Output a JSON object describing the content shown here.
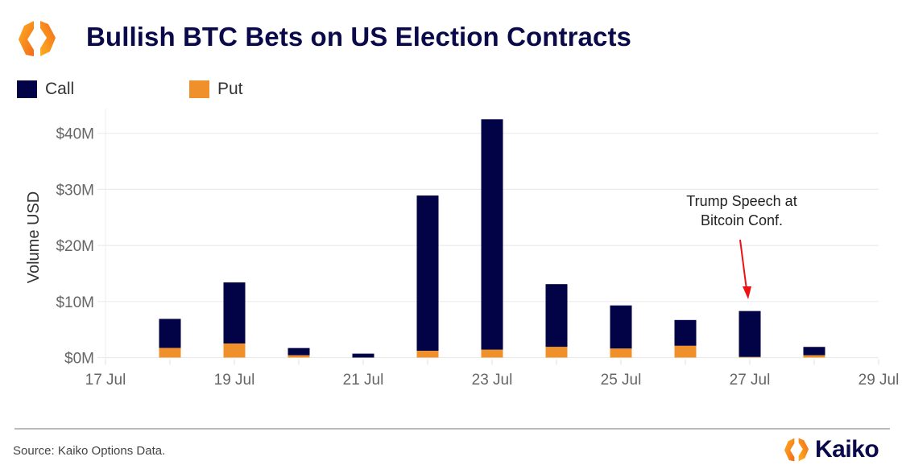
{
  "header": {
    "title": "Bullish BTC Bets on US Election Contracts",
    "logo_icon": "kaiko-hexagon-logo-icon"
  },
  "legend": [
    {
      "label": "Call",
      "color": "#020246"
    },
    {
      "label": "Put",
      "color": "#f0902a"
    }
  ],
  "footer": {
    "source": "Source: Kaiko Options Data.",
    "brand": "Kaiko"
  },
  "colors": {
    "call": "#020246",
    "put": "#f0902a",
    "title": "#0a0a4a",
    "annotation_arrow": "#ee1111",
    "grid": "#ececec"
  },
  "chart_data": {
    "type": "bar",
    "stacked": true,
    "title": "Bullish BTC Bets on US Election Contracts",
    "xlabel": "",
    "ylabel": "Volume USD",
    "ylim": [
      0,
      42.5
    ],
    "y_unit": "USD millions",
    "y_ticks": [
      0,
      10,
      20,
      30,
      40
    ],
    "y_tick_labels": [
      "$0M",
      "$10M",
      "$20M",
      "$30M",
      "$40M"
    ],
    "x_tick_labels": [
      "17 Jul",
      "19 Jul",
      "21 Jul",
      "23 Jul",
      "25 Jul",
      "27 Jul",
      "29 Jul"
    ],
    "x_tick_days": [
      17,
      19,
      21,
      23,
      25,
      27,
      29
    ],
    "x_range_days": [
      17,
      29
    ],
    "grid": true,
    "legend_position": "top-left",
    "categories": [
      "18 Jul",
      "19 Jul",
      "20 Jul",
      "21 Jul",
      "22 Jul",
      "23 Jul",
      "24 Jul",
      "25 Jul",
      "26 Jul",
      "27 Jul",
      "28 Jul"
    ],
    "category_days": [
      18,
      19,
      20,
      21,
      22,
      23,
      24,
      25,
      26,
      27,
      28
    ],
    "series": [
      {
        "name": "Put",
        "values": [
          1.7,
          2.5,
          0.4,
          0.0,
          1.2,
          1.4,
          1.9,
          1.6,
          2.1,
          0.1,
          0.4
        ]
      },
      {
        "name": "Call",
        "values": [
          5.2,
          10.9,
          1.3,
          0.7,
          27.7,
          41.1,
          11.2,
          7.7,
          4.6,
          8.2,
          1.5
        ]
      }
    ],
    "annotations": [
      {
        "text_lines": [
          "Trump Speech at",
          "Bitcoin Conf."
        ],
        "target_day": 27,
        "arrow": true
      }
    ]
  }
}
